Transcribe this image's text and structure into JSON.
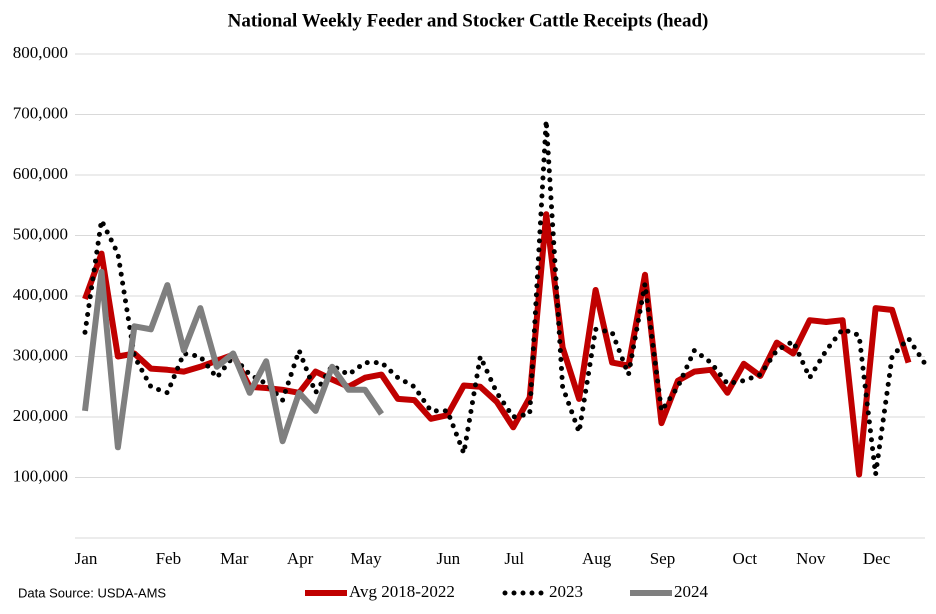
{
  "chart_data": {
    "type": "line",
    "title": "National Weekly Feeder and Stocker Cattle Receipts (head)",
    "source": "Data Source: USDA-AMS",
    "categories": [
      "Jan",
      null,
      null,
      null,
      null,
      "Feb",
      null,
      null,
      null,
      "Mar",
      null,
      null,
      null,
      "Apr",
      null,
      null,
      null,
      "May",
      null,
      null,
      null,
      null,
      "Jun",
      null,
      null,
      null,
      "Jul",
      null,
      null,
      null,
      null,
      "Aug",
      null,
      null,
      null,
      "Sep",
      null,
      null,
      null,
      null,
      "Oct",
      null,
      null,
      null,
      "Nov",
      null,
      null,
      null,
      "Dec",
      null,
      null,
      null
    ],
    "ylim": [
      0,
      800000
    ],
    "yticks": [
      {
        "value": 100000,
        "label": "100,000"
      },
      {
        "value": 200000,
        "label": "200,000"
      },
      {
        "value": 300000,
        "label": "300,000"
      },
      {
        "value": 400000,
        "label": "400,000"
      },
      {
        "value": 500000,
        "label": "500,000"
      },
      {
        "value": 600000,
        "label": "600,000"
      },
      {
        "value": 700000,
        "label": "700,000"
      },
      {
        "value": 800000,
        "label": "800,000"
      }
    ],
    "grid": true,
    "series": [
      {
        "name": "Avg 2018-2022",
        "color": "#c00000",
        "style": "solid",
        "values": [
          395000,
          470000,
          300000,
          305000,
          280000,
          278000,
          275000,
          283000,
          293000,
          303000,
          250000,
          248000,
          245000,
          240000,
          275000,
          262000,
          250000,
          265000,
          270000,
          230000,
          228000,
          197000,
          203000,
          252000,
          250000,
          225000,
          183000,
          232000,
          535000,
          315000,
          230000,
          410000,
          290000,
          285000,
          435000,
          190000,
          260000,
          275000,
          278000,
          240000,
          288000,
          268000,
          323000,
          305000,
          360000,
          357000,
          360000,
          105000,
          380000,
          377000,
          290000,
          null
        ]
      },
      {
        "name": "2023",
        "color": "#000000",
        "style": "dotted",
        "values": [
          340000,
          525000,
          470000,
          300000,
          250000,
          240000,
          305000,
          300000,
          265000,
          300000,
          270000,
          255000,
          228000,
          310000,
          240000,
          285000,
          270000,
          290000,
          290000,
          265000,
          250000,
          210000,
          210000,
          140000,
          300000,
          240000,
          200000,
          205000,
          690000,
          250000,
          175000,
          345000,
          340000,
          270000,
          420000,
          210000,
          250000,
          310000,
          290000,
          255000,
          260000,
          270000,
          310000,
          325000,
          265000,
          310000,
          345000,
          335000,
          105000,
          300000,
          330000,
          288000
        ]
      },
      {
        "name": "2024",
        "color": "#7f7f7f",
        "style": "solid",
        "values": [
          210000,
          440000,
          150000,
          350000,
          345000,
          418000,
          310000,
          380000,
          283000,
          305000,
          240000,
          292000,
          160000,
          240000,
          210000,
          283000,
          245000,
          245000,
          205000,
          null,
          null,
          null,
          null,
          null,
          null,
          null,
          null,
          null,
          null,
          null,
          null,
          null,
          null,
          null,
          null,
          null,
          null,
          null,
          null,
          null,
          null,
          null,
          null,
          null,
          null,
          null,
          null,
          null,
          null,
          null,
          null,
          null
        ]
      }
    ]
  }
}
